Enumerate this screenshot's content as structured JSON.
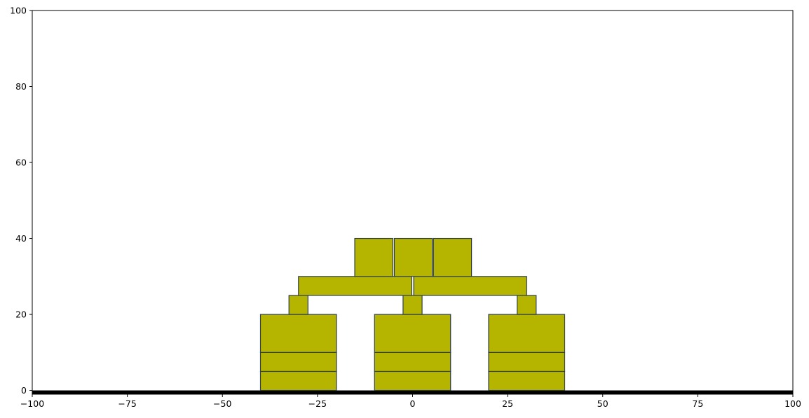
{
  "chart_data": {
    "type": "block-structure",
    "title": "",
    "xlabel": "",
    "ylabel": "",
    "xlim": [
      -100,
      100
    ],
    "ylim": [
      -1,
      100
    ],
    "x_ticks": [
      -100,
      -75,
      -50,
      -25,
      0,
      25,
      50,
      75,
      100
    ],
    "x_tick_labels": [
      "−100",
      "−75",
      "−50",
      "−25",
      "0",
      "25",
      "50",
      "75",
      "100"
    ],
    "y_ticks": [
      0,
      20,
      40,
      60,
      80,
      100
    ],
    "y_tick_labels": [
      "0",
      "20",
      "40",
      "60",
      "80",
      "100"
    ],
    "grid": false,
    "ground": {
      "y": 0,
      "color": "#000000"
    },
    "block_fill": "#b5b500",
    "block_edge": "#2f3f4f",
    "blocks": [
      {
        "x": [
          -40,
          -20
        ],
        "y": [
          0,
          5
        ]
      },
      {
        "x": [
          -40,
          -20
        ],
        "y": [
          5,
          10
        ]
      },
      {
        "x": [
          -40,
          -20
        ],
        "y": [
          10,
          20
        ]
      },
      {
        "x": [
          -10,
          10
        ],
        "y": [
          0,
          5
        ]
      },
      {
        "x": [
          -10,
          10
        ],
        "y": [
          5,
          10
        ]
      },
      {
        "x": [
          -10,
          10
        ],
        "y": [
          10,
          20
        ]
      },
      {
        "x": [
          20,
          40
        ],
        "y": [
          0,
          5
        ]
      },
      {
        "x": [
          20,
          40
        ],
        "y": [
          5,
          10
        ]
      },
      {
        "x": [
          20,
          40
        ],
        "y": [
          10,
          20
        ]
      },
      {
        "x": [
          -32.5,
          -27.5
        ],
        "y": [
          20,
          25
        ]
      },
      {
        "x": [
          -2.5,
          2.5
        ],
        "y": [
          20,
          25
        ]
      },
      {
        "x": [
          27.5,
          32.5
        ],
        "y": [
          20,
          25
        ]
      },
      {
        "x": [
          -30,
          -0.2
        ],
        "y": [
          25,
          30
        ]
      },
      {
        "x": [
          0.3,
          30
        ],
        "y": [
          25,
          30
        ]
      },
      {
        "x": [
          -15.2,
          -5.2
        ],
        "y": [
          30,
          40
        ]
      },
      {
        "x": [
          -4.8,
          5.2
        ],
        "y": [
          30,
          40
        ]
      },
      {
        "x": [
          5.5,
          15.5
        ],
        "y": [
          30,
          40
        ]
      }
    ]
  }
}
